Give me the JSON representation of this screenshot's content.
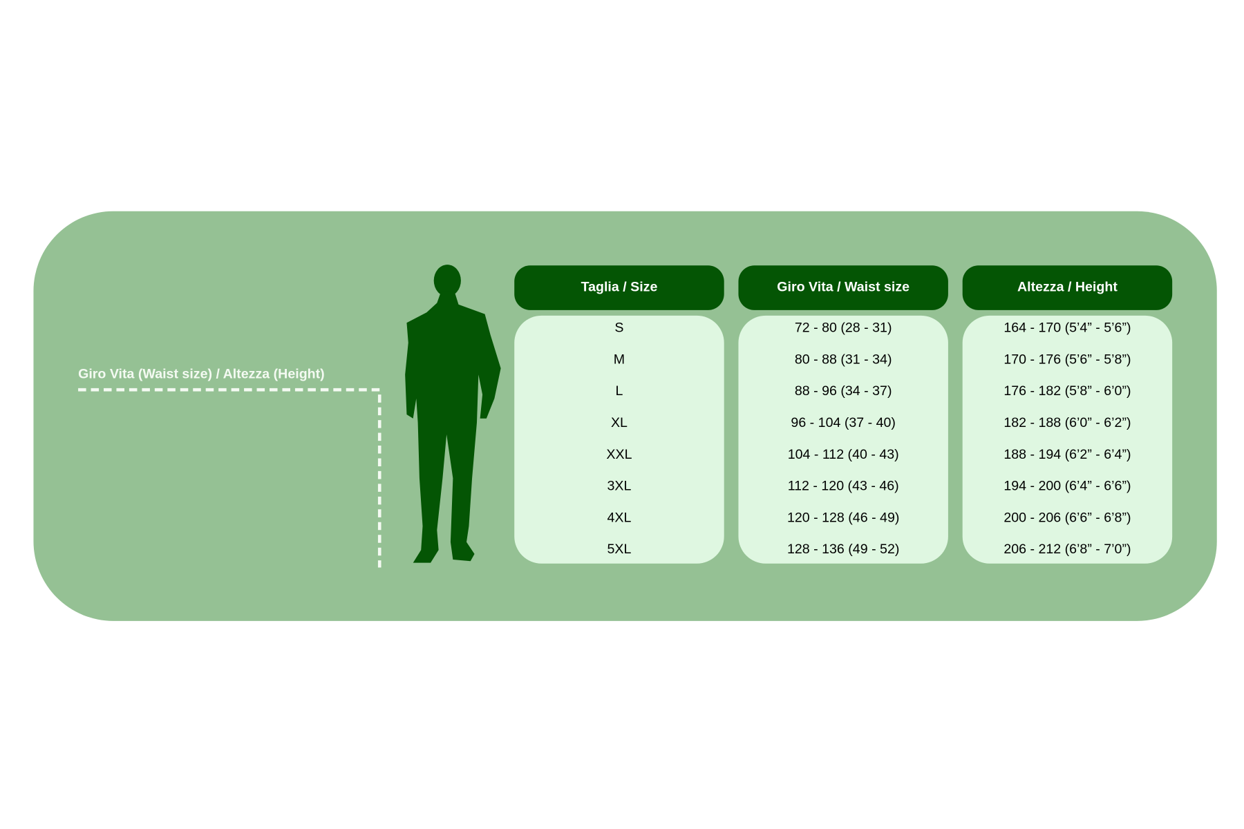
{
  "label": "Giro Vita  (Waist size) / Altezza (Height)",
  "table": {
    "headers": [
      "Taglia / Size",
      "Giro Vita / Waist size",
      "Altezza / Height"
    ],
    "rows": [
      [
        "S",
        "72 - 80 (28 - 31)",
        "164 - 170 (5’4” - 5’6”)"
      ],
      [
        "M",
        "80 - 88 (31 - 34)",
        "170 - 176 (5’6” - 5’8”)"
      ],
      [
        "L",
        "88 - 96 (34 - 37)",
        "176 - 182 (5’8” - 6’0”)"
      ],
      [
        "XL",
        "96 - 104 (37 - 40)",
        "182 - 188 (6’0” - 6’2”)"
      ],
      [
        "XXL",
        "104 - 112 (40 - 43)",
        "188 - 194 (6’2” - 6’4”)"
      ],
      [
        "3XL",
        "112 - 120 (43 - 46)",
        "194 - 200 (6’4” - 6’6”)"
      ],
      [
        "4XL",
        "120 - 128 (46 - 49)",
        "200 - 206 (6’6” - 6’8”)"
      ],
      [
        "5XL",
        "128 - 136 (49 - 52)",
        "206 - 212 (6’8” - 7’0”)"
      ]
    ]
  }
}
